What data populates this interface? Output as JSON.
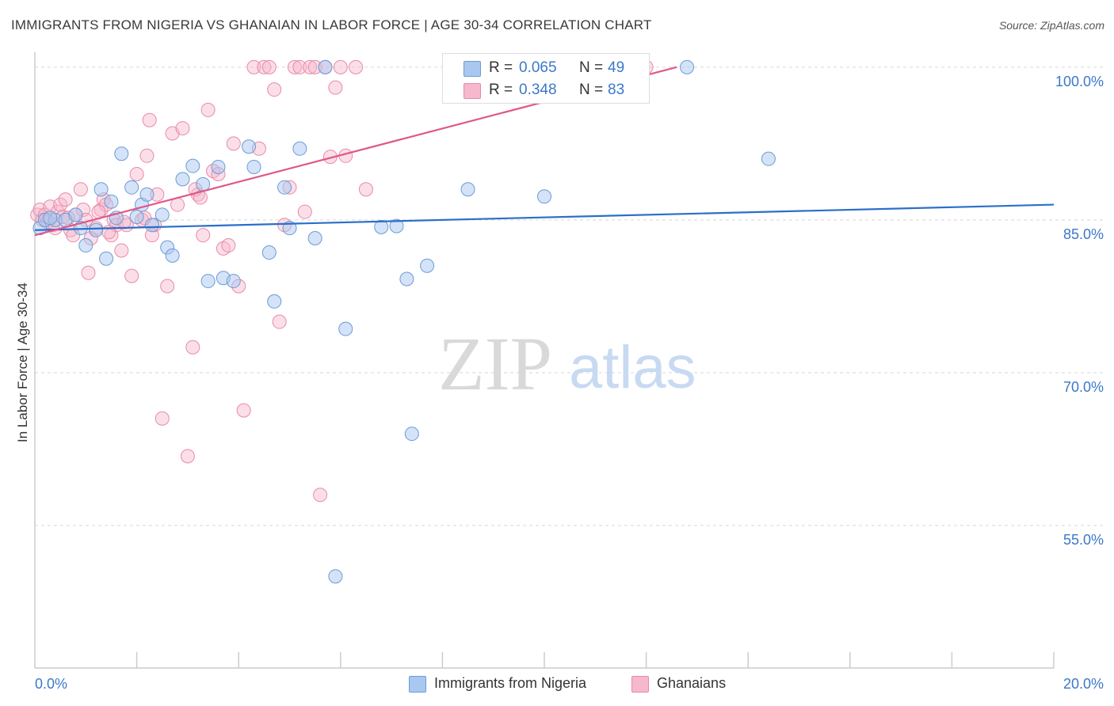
{
  "title": "IMMIGRANTS FROM NIGERIA VS GHANAIAN IN LABOR FORCE | AGE 30-34 CORRELATION CHART",
  "source": "Source: ZipAtlas.com",
  "watermark": {
    "zip": "ZIP",
    "atlas": "atlas"
  },
  "colors": {
    "blue_fill": "#a9c8f0",
    "blue_stroke": "#6a9bd8",
    "blue_line": "#2a6fc9",
    "pink_fill": "#f6b8cc",
    "pink_stroke": "#e98aa8",
    "pink_line": "#e0578a",
    "axis_text": "#3c78c8",
    "grid": "#d8d8d8"
  },
  "legend_top": {
    "rows": [
      {
        "r_label": "R =",
        "r_value": "0.065",
        "n_label": "N =",
        "n_value": "49",
        "color": "#a9c8f0",
        "border": "#6a9bd8"
      },
      {
        "r_label": "R =",
        "r_value": "0.348",
        "n_label": "N =",
        "n_value": "83",
        "color": "#f6b8cc",
        "border": "#e98aa8"
      }
    ]
  },
  "legend_bottom": [
    {
      "label": "Immigrants from Nigeria",
      "color": "#a9c8f0",
      "border": "#6a9bd8"
    },
    {
      "label": "Ghanaians",
      "color": "#f6b8cc",
      "border": "#e98aa8"
    }
  ],
  "chart_data": {
    "type": "scatter",
    "title": "IMMIGRANTS FROM NIGERIA VS GHANAIAN IN LABOR FORCE | AGE 30-34 CORRELATION CHART",
    "xlabel": "",
    "ylabel": "In Labor Force | Age 30-34",
    "xlim": [
      0,
      20
    ],
    "ylim": [
      41,
      101
    ],
    "x_tick_labels": [
      {
        "value": 0,
        "label": "0.0%"
      },
      {
        "value": 20,
        "label": "20.0%"
      }
    ],
    "y_tick_labels": [
      {
        "value": 55,
        "label": "55.0%"
      },
      {
        "value": 70,
        "label": "70.0%"
      },
      {
        "value": 85,
        "label": "85.0%"
      },
      {
        "value": 100,
        "label": "100.0%"
      }
    ],
    "x_minor_ticks": [
      2,
      4,
      6,
      8,
      10,
      12,
      14,
      16,
      18,
      20
    ],
    "grid": "horizontal dashed",
    "legend_position": "top-center",
    "series": [
      {
        "name": "Immigrants from Nigeria",
        "color": "#a9c8f0",
        "trend": {
          "x": [
            0,
            20
          ],
          "y": [
            84.0,
            86.5
          ]
        },
        "points": [
          [
            0.1,
            84.2
          ],
          [
            0.2,
            85.0
          ],
          [
            0.4,
            85.0
          ],
          [
            0.6,
            85.0
          ],
          [
            0.9,
            84.2
          ],
          [
            1.0,
            82.5
          ],
          [
            1.2,
            84.0
          ],
          [
            1.3,
            88.0
          ],
          [
            1.4,
            81.2
          ],
          [
            1.5,
            86.8
          ],
          [
            1.6,
            85.2
          ],
          [
            1.7,
            91.5
          ],
          [
            1.9,
            88.2
          ],
          [
            2.0,
            85.3
          ],
          [
            2.1,
            86.5
          ],
          [
            2.2,
            87.5
          ],
          [
            2.3,
            84.5
          ],
          [
            2.5,
            85.5
          ],
          [
            2.6,
            82.3
          ],
          [
            2.9,
            89.0
          ],
          [
            3.1,
            90.3
          ],
          [
            3.3,
            88.5
          ],
          [
            3.4,
            79.0
          ],
          [
            3.6,
            90.2
          ],
          [
            3.7,
            79.3
          ],
          [
            3.9,
            79.0
          ],
          [
            4.2,
            92.2
          ],
          [
            4.3,
            90.2
          ],
          [
            4.6,
            81.8
          ],
          [
            4.9,
            88.2
          ],
          [
            5.0,
            84.2
          ],
          [
            5.2,
            92.0
          ],
          [
            5.5,
            83.2
          ],
          [
            5.7,
            100.0
          ],
          [
            6.1,
            74.3
          ],
          [
            6.8,
            84.3
          ],
          [
            7.1,
            84.4
          ],
          [
            7.3,
            79.2
          ],
          [
            7.4,
            64.0
          ],
          [
            7.7,
            80.5
          ],
          [
            8.5,
            88.0
          ],
          [
            10.0,
            87.3
          ],
          [
            12.8,
            100.0
          ],
          [
            14.4,
            91.0
          ],
          [
            5.9,
            50.0
          ],
          [
            2.7,
            81.5
          ],
          [
            0.3,
            85.2
          ],
          [
            0.8,
            85.5
          ],
          [
            4.7,
            77.0
          ]
        ]
      },
      {
        "name": "Ghanaians",
        "color": "#f6b8cc",
        "trend": {
          "x": [
            0,
            12.6
          ],
          "y": [
            83.5,
            100.0
          ]
        },
        "points": [
          [
            0.05,
            85.5
          ],
          [
            0.1,
            86.0
          ],
          [
            0.15,
            85.0
          ],
          [
            0.2,
            85.5
          ],
          [
            0.3,
            86.3
          ],
          [
            0.35,
            84.5
          ],
          [
            0.45,
            85.8
          ],
          [
            0.5,
            86.5
          ],
          [
            0.6,
            87.0
          ],
          [
            0.7,
            84.0
          ],
          [
            0.75,
            83.5
          ],
          [
            0.8,
            85.5
          ],
          [
            0.9,
            88.0
          ],
          [
            0.95,
            86.0
          ],
          [
            1.0,
            85.0
          ],
          [
            1.05,
            79.8
          ],
          [
            1.1,
            83.2
          ],
          [
            1.2,
            84.2
          ],
          [
            1.3,
            86.0
          ],
          [
            1.35,
            87.0
          ],
          [
            1.4,
            86.5
          ],
          [
            1.5,
            83.5
          ],
          [
            1.55,
            85.0
          ],
          [
            1.6,
            84.5
          ],
          [
            1.7,
            82.0
          ],
          [
            1.8,
            84.5
          ],
          [
            1.9,
            79.5
          ],
          [
            2.0,
            89.5
          ],
          [
            2.1,
            85.0
          ],
          [
            2.2,
            91.3
          ],
          [
            2.25,
            94.8
          ],
          [
            2.3,
            83.5
          ],
          [
            2.4,
            87.5
          ],
          [
            2.5,
            65.5
          ],
          [
            2.6,
            78.5
          ],
          [
            2.7,
            93.5
          ],
          [
            2.8,
            86.5
          ],
          [
            2.9,
            94.0
          ],
          [
            3.0,
            61.8
          ],
          [
            3.1,
            72.5
          ],
          [
            3.2,
            87.5
          ],
          [
            3.3,
            83.5
          ],
          [
            3.4,
            95.8
          ],
          [
            3.5,
            89.8
          ],
          [
            3.6,
            89.5
          ],
          [
            3.7,
            82.2
          ],
          [
            3.8,
            82.5
          ],
          [
            3.9,
            92.5
          ],
          [
            4.0,
            78.5
          ],
          [
            4.1,
            66.3
          ],
          [
            4.3,
            100.0
          ],
          [
            4.4,
            92.0
          ],
          [
            4.5,
            100.0
          ],
          [
            4.6,
            100.0
          ],
          [
            4.7,
            97.8
          ],
          [
            4.8,
            75.0
          ],
          [
            4.9,
            84.5
          ],
          [
            5.0,
            88.2
          ],
          [
            5.1,
            100.0
          ],
          [
            5.2,
            100.0
          ],
          [
            5.3,
            85.8
          ],
          [
            5.4,
            100.0
          ],
          [
            5.5,
            100.0
          ],
          [
            5.6,
            58.0
          ],
          [
            5.7,
            100.0
          ],
          [
            5.8,
            91.2
          ],
          [
            5.9,
            98.0
          ],
          [
            6.0,
            100.0
          ],
          [
            6.1,
            91.3
          ],
          [
            6.3,
            100.0
          ],
          [
            6.5,
            88.0
          ],
          [
            12.0,
            100.0
          ],
          [
            0.25,
            84.8
          ],
          [
            0.55,
            85.3
          ],
          [
            1.25,
            85.8
          ],
          [
            1.75,
            84.8
          ],
          [
            2.15,
            85.2
          ],
          [
            3.15,
            88.0
          ],
          [
            2.35,
            84.5
          ],
          [
            0.65,
            85.2
          ],
          [
            1.45,
            83.8
          ],
          [
            3.25,
            87.2
          ],
          [
            0.4,
            84.2
          ]
        ]
      }
    ]
  }
}
